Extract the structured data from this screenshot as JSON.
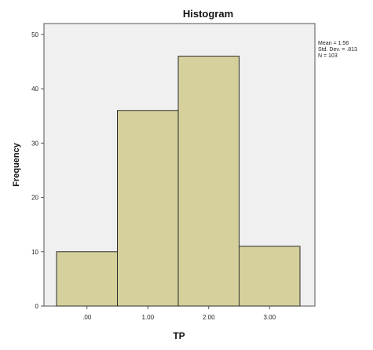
{
  "chart_data": {
    "type": "bar",
    "title": "Histogram",
    "xlabel": "TP",
    "ylabel": "Frequency",
    "categories": [
      ".00",
      "1.00",
      "2.00",
      "3.00"
    ],
    "values": [
      10,
      36,
      46,
      11
    ],
    "ylim": [
      0,
      52
    ],
    "yticks": [
      "0",
      "10",
      "20",
      "30",
      "40",
      "50"
    ],
    "ytick_values": [
      0,
      10,
      20,
      30,
      40,
      50
    ],
    "stats": [
      "Mean = 1.56",
      "Std. Dev. = .813",
      "N = 103"
    ],
    "grid": false,
    "bar_color": "#d6d19c",
    "bar_edge_color": "#2b2b2b",
    "plot_background": "#f0f0f0"
  }
}
